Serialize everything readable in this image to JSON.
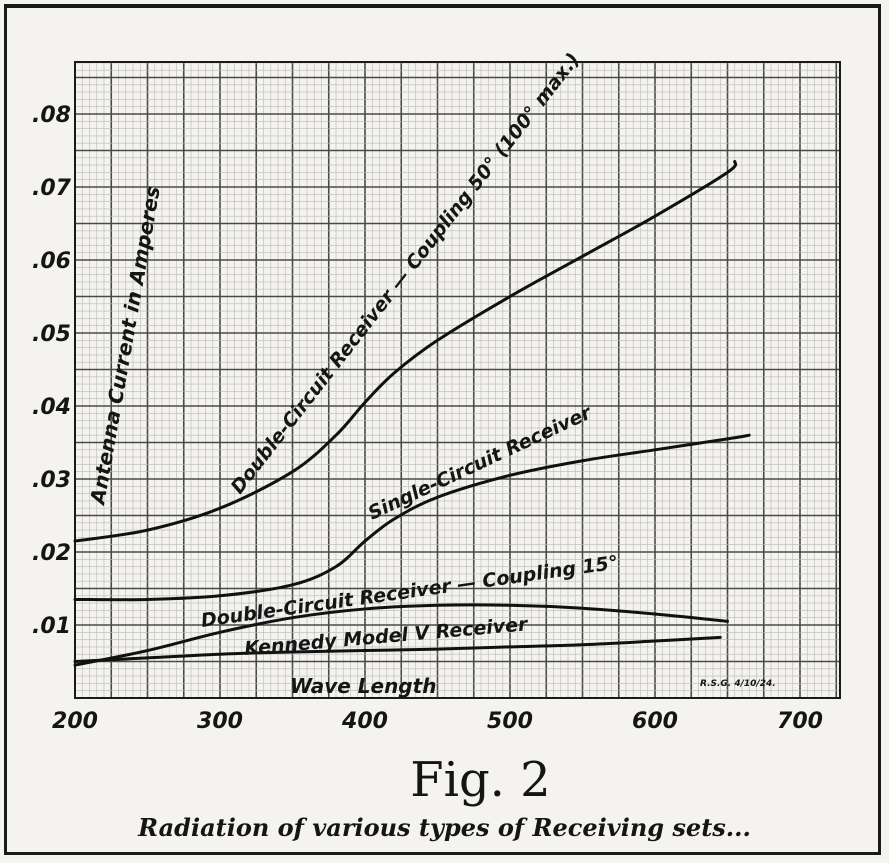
{
  "chart_data": {
    "type": "line",
    "title": "",
    "figure_label": "Fig. 2",
    "caption": "Radiation of various types of Receiving sets...",
    "xlabel": "Wave Length",
    "ylabel": "Antenna Current in Amperes",
    "xlim": [
      200,
      700
    ],
    "ylim": [
      0,
      0.085
    ],
    "x_ticks": [
      200,
      300,
      400,
      500,
      600,
      700
    ],
    "y_ticks": [
      ".01",
      ".02",
      ".03",
      ".04",
      ".05",
      ".06",
      ".07",
      ".08"
    ],
    "grid": true,
    "initials": "R.S.G. 4/10/24.",
    "series": [
      {
        "name": "Double-Circuit Receiver — Coupling 50° (100° max.)",
        "x": [
          200,
          250,
          300,
          350,
          380,
          400,
          420,
          450,
          500,
          550,
          600,
          650,
          655
        ],
        "y": [
          0.0215,
          0.023,
          0.026,
          0.031,
          0.036,
          0.0405,
          0.0445,
          0.049,
          0.055,
          0.0605,
          0.066,
          0.072,
          0.0735
        ]
      },
      {
        "name": "Single-Circuit Receiver",
        "x": [
          200,
          250,
          300,
          350,
          380,
          400,
          420,
          450,
          500,
          550,
          600,
          650,
          665
        ],
        "y": [
          0.0135,
          0.0135,
          0.014,
          0.0155,
          0.018,
          0.0215,
          0.0245,
          0.0275,
          0.0305,
          0.0325,
          0.034,
          0.0355,
          0.036
        ]
      },
      {
        "name": "Double-Circuit Receiver — Coupling 15°",
        "x": [
          200,
          250,
          300,
          350,
          400,
          450,
          500,
          550,
          600,
          650
        ],
        "y": [
          0.0045,
          0.0065,
          0.009,
          0.011,
          0.0122,
          0.0127,
          0.0127,
          0.0123,
          0.0115,
          0.0105
        ]
      },
      {
        "name": "Kennedy Model V Receiver",
        "x": [
          200,
          250,
          300,
          350,
          400,
          450,
          500,
          550,
          600,
          645
        ],
        "y": [
          0.005,
          0.0055,
          0.006,
          0.0063,
          0.0065,
          0.0067,
          0.007,
          0.0073,
          0.0078,
          0.0083
        ]
      }
    ]
  }
}
